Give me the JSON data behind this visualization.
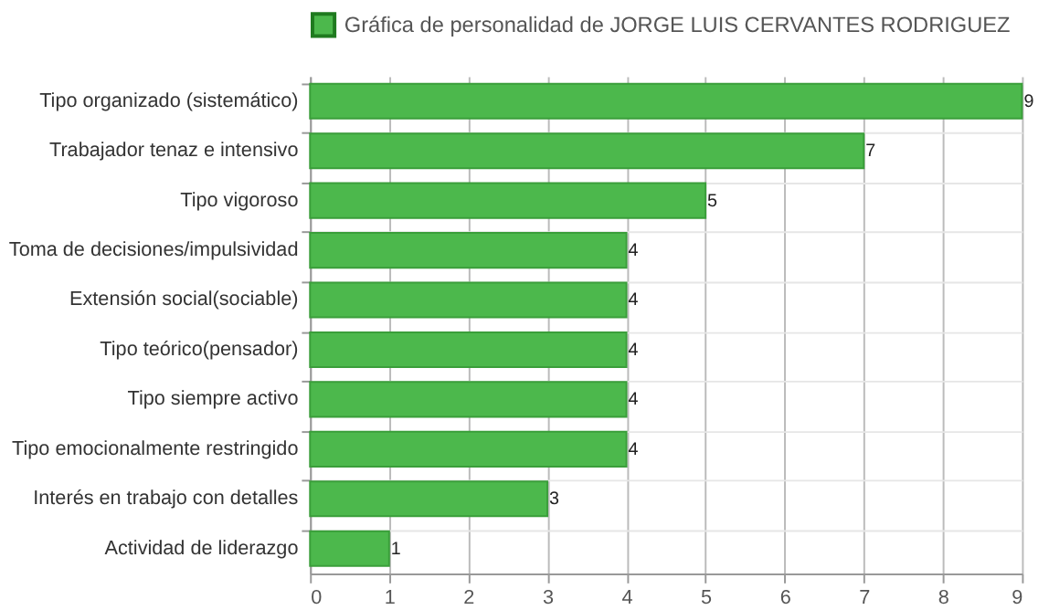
{
  "chart_data": {
    "type": "bar",
    "orientation": "horizontal",
    "categories": [
      "Tipo organizado (sistemático)",
      "Trabajador tenaz e intensivo",
      "Tipo vigoroso",
      "Toma de decisiones/impulsividad",
      "Extensión social(sociable)",
      "Tipo teórico(pensador)",
      "Tipo siempre activo",
      "Tipo emocionalmente restringido",
      "Interés en trabajo con detalles",
      "Actividad de liderazgo"
    ],
    "series": [
      {
        "name": "Gráfica de personalidad de JORGE LUIS CERVANTES RODRIGUEZ",
        "color": "#4cb84c",
        "values": [
          9,
          7,
          5,
          4,
          4,
          4,
          4,
          4,
          3,
          1
        ]
      }
    ],
    "xlim": [
      0,
      9
    ],
    "xticks": [
      0,
      1,
      2,
      3,
      4,
      5,
      6,
      7,
      8,
      9
    ],
    "grid": true,
    "legend": "top",
    "data_labels": true
  }
}
